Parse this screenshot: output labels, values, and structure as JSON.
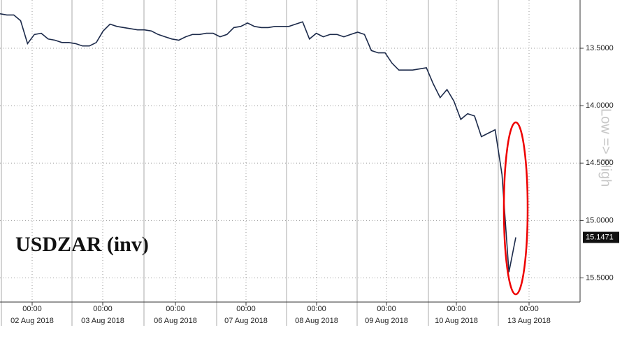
{
  "chart_data": {
    "type": "line",
    "annotation": "USDZAR (inv)",
    "axis_note": "Low => High",
    "xticks": [
      {
        "time": "00:00",
        "date": "02 Aug 2018"
      },
      {
        "time": "00:00",
        "date": "03 Aug 2018"
      },
      {
        "time": "00:00",
        "date": "06 Aug 2018"
      },
      {
        "time": "00:00",
        "date": "07 Aug 2018"
      },
      {
        "time": "00:00",
        "date": "08 Aug 2018"
      },
      {
        "time": "00:00",
        "date": "09 Aug 2018"
      },
      {
        "time": "00:00",
        "date": "10 Aug 2018"
      },
      {
        "time": "00:00",
        "date": "13 Aug 2018"
      }
    ],
    "series": [
      {
        "name": "USDZAR",
        "color": "#1c2a4a",
        "values": [
          13.2,
          13.21,
          13.21,
          13.26,
          13.46,
          13.38,
          13.37,
          13.42,
          13.43,
          13.45,
          13.45,
          13.46,
          13.48,
          13.48,
          13.45,
          13.35,
          13.29,
          13.31,
          13.32,
          13.33,
          13.34,
          13.34,
          13.35,
          13.38,
          13.4,
          13.42,
          13.43,
          13.4,
          13.38,
          13.38,
          13.37,
          13.37,
          13.4,
          13.38,
          13.32,
          13.31,
          13.28,
          13.31,
          13.32,
          13.32,
          13.31,
          13.31,
          13.31,
          13.29,
          13.27,
          13.42,
          13.37,
          13.4,
          13.38,
          13.38,
          13.4,
          13.38,
          13.36,
          13.38,
          13.52,
          13.54,
          13.54,
          13.63,
          13.69,
          13.69,
          13.69,
          13.68,
          13.67,
          13.81,
          13.93,
          13.86,
          13.96,
          14.12,
          14.07,
          14.09,
          14.27,
          14.24,
          14.21,
          14.6,
          15.45,
          15.1471
        ]
      }
    ],
    "ylim": [
      13.08,
      15.71
    ],
    "inverted": true,
    "yticks": [
      {
        "value": 13.5,
        "label": "13.5000"
      },
      {
        "value": 14.0,
        "label": "14.0000"
      },
      {
        "value": 14.5,
        "label": "14.5000"
      },
      {
        "value": 15.0,
        "label": "15.0000"
      },
      {
        "value": 15.5,
        "label": "15.5000"
      }
    ],
    "grid": true
  }
}
